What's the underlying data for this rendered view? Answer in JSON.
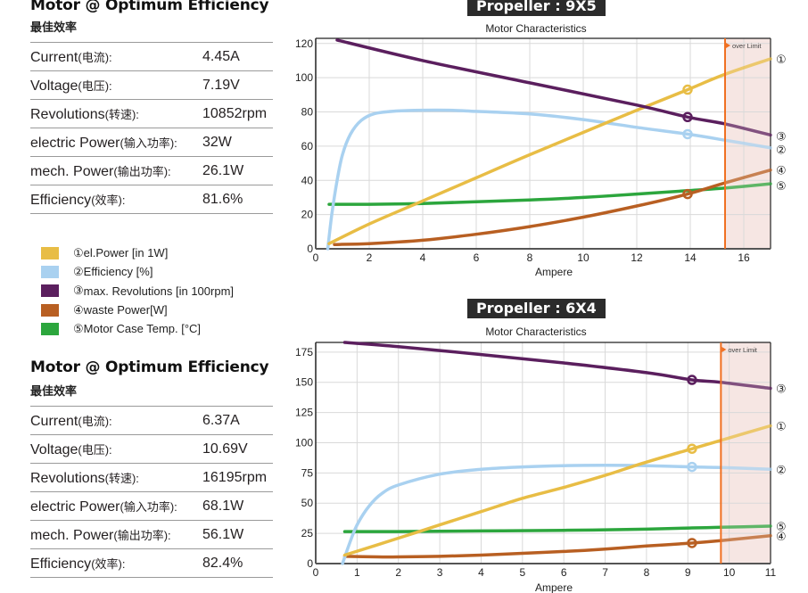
{
  "panels": [
    {
      "title": "Motor @ Optimum Efficiency",
      "subtitle": "最佳效率",
      "rows": [
        {
          "label": "Current",
          "zh": "(电流):",
          "value": "4.45A"
        },
        {
          "label": "Voltage",
          "zh": "(电压):",
          "value": "7.19V"
        },
        {
          "label": "Revolutions",
          "zh": "(转速):",
          "value": "10852rpm"
        },
        {
          "label": "electric Power",
          "zh": "(输入功率):",
          "value": "32W"
        },
        {
          "label": "mech. Power",
          "zh": "(输出功率):",
          "value": "26.1W"
        },
        {
          "label": "Efficiency",
          "zh": "(效率):",
          "value": "81.6%"
        }
      ]
    },
    {
      "title": "Motor @ Optimum Efficiency",
      "subtitle": "最佳效率",
      "rows": [
        {
          "label": "Current",
          "zh": "(电流):",
          "value": "6.37A"
        },
        {
          "label": "Voltage",
          "zh": "(电压):",
          "value": "10.69V"
        },
        {
          "label": "Revolutions",
          "zh": "(转速):",
          "value": "16195rpm"
        },
        {
          "label": "electric Power",
          "zh": "(输入功率):",
          "value": "68.1W"
        },
        {
          "label": "mech. Power",
          "zh": "(输出功率):",
          "value": "56.1W"
        },
        {
          "label": "Efficiency",
          "zh": "(效率):",
          "value": "82.4%"
        }
      ]
    }
  ],
  "legend": [
    {
      "marker": "①",
      "label": " el.Power [in 1W]",
      "color": "#e8bd45"
    },
    {
      "marker": "②",
      "label": "Efficiency [%]",
      "color": "#a9d1f0"
    },
    {
      "marker": "③",
      "label": "max. Revolutions [in 100rpm]",
      "color": "#5b1f5e"
    },
    {
      "marker": "④",
      "label": "waste Power[W]",
      "color": "#b85f22"
    },
    {
      "marker": "⑤",
      "label": "Motor Case Temp. [°C]",
      "color": "#2ca63d"
    }
  ],
  "colors": {
    "el_power": "#e8bd45",
    "efficiency": "#a9d1f0",
    "revolutions": "#5b1f5e",
    "waste_power": "#b85f22",
    "case_temp": "#2ca63d",
    "limit": "#f07022",
    "limit_zone": "#f6e6e3",
    "badge_bg": "#2b2b2b"
  },
  "chart_data": [
    {
      "type": "line",
      "propeller_label": "Propeller : 9X5",
      "title": "Motor Characteristics",
      "xlabel": "Ampere",
      "ylabel": "",
      "xlim": [
        0,
        17
      ],
      "ylim": [
        0,
        123
      ],
      "xticks": [
        0,
        2,
        4,
        6,
        8,
        10,
        12,
        14,
        16
      ],
      "yticks": [
        0,
        20,
        40,
        60,
        80,
        100,
        120
      ],
      "grid": true,
      "over_limit": {
        "x": 15.3,
        "label": "over Limit"
      },
      "operating_point_x": 13.9,
      "series": [
        {
          "name": "el.Power [in 1W]",
          "marker": "①",
          "key": "el_power",
          "points": [
            [
              0.5,
              3
            ],
            [
              2,
              14.5
            ],
            [
              4,
              28
            ],
            [
              6,
              41.5
            ],
            [
              8,
              55
            ],
            [
              10,
              68
            ],
            [
              12,
              81
            ],
            [
              13.9,
              93
            ],
            [
              15.3,
              102
            ],
            [
              17,
              111
            ]
          ]
        },
        {
          "name": "Efficiency [%]",
          "marker": "②",
          "key": "efficiency",
          "points": [
            [
              0.45,
              0
            ],
            [
              0.6,
              20
            ],
            [
              0.8,
              40
            ],
            [
              1,
              55
            ],
            [
              1.3,
              67
            ],
            [
              1.7,
              75
            ],
            [
              2.2,
              79
            ],
            [
              3,
              80.5
            ],
            [
              4,
              81
            ],
            [
              5,
              81
            ],
            [
              6,
              80.3
            ],
            [
              8,
              78.8
            ],
            [
              10,
              75.5
            ],
            [
              12,
              71
            ],
            [
              13.9,
              67
            ],
            [
              15.3,
              63.5
            ],
            [
              17,
              59
            ]
          ]
        },
        {
          "name": "max. Revolutions [in 100rpm]",
          "marker": "③",
          "key": "revolutions",
          "points": [
            [
              0.8,
              122
            ],
            [
              4,
              110
            ],
            [
              8,
              97
            ],
            [
              12,
              84
            ],
            [
              13.9,
              77
            ],
            [
              15.3,
              73
            ],
            [
              17,
              66.5
            ]
          ]
        },
        {
          "name": "waste Power[W]",
          "marker": "④",
          "key": "waste_power",
          "points": [
            [
              0.7,
              2.5
            ],
            [
              2,
              3
            ],
            [
              4,
              5
            ],
            [
              6,
              8.5
            ],
            [
              8,
              13
            ],
            [
              10,
              18.5
            ],
            [
              12,
              25
            ],
            [
              13.9,
              32
            ],
            [
              15.3,
              38.5
            ],
            [
              17,
              46
            ]
          ]
        },
        {
          "name": "Motor Case Temp. [°C]",
          "marker": "⑤",
          "key": "case_temp",
          "points": [
            [
              0.5,
              26
            ],
            [
              2,
              26
            ],
            [
              4,
              26.5
            ],
            [
              6,
              27.5
            ],
            [
              8,
              28.5
            ],
            [
              10,
              30
            ],
            [
              12,
              32
            ],
            [
              13.9,
              34
            ],
            [
              15.3,
              35.5
            ],
            [
              17,
              38
            ]
          ]
        }
      ],
      "end_labels": [
        {
          "marker": "①",
          "y": 111
        },
        {
          "marker": "③",
          "y": 66
        },
        {
          "marker": "②",
          "y": 58
        },
        {
          "marker": "④",
          "y": 46
        },
        {
          "marker": "⑤",
          "y": 37
        }
      ]
    },
    {
      "type": "line",
      "propeller_label": "Propeller : 6X4",
      "title": "Motor Characteristics",
      "xlabel": "Ampere",
      "ylabel": "",
      "xlim": [
        0,
        11
      ],
      "ylim": [
        0,
        183
      ],
      "xticks": [
        0,
        1,
        2,
        3,
        4,
        5,
        6,
        7,
        8,
        9,
        10,
        11
      ],
      "yticks": [
        0,
        25,
        50,
        75,
        100,
        125,
        150,
        175
      ],
      "grid": true,
      "over_limit": {
        "x": 9.8,
        "label": "over Limit"
      },
      "operating_point_x": 9.1,
      "series": [
        {
          "name": "el.Power [in 1W]",
          "marker": "①",
          "key": "el_power",
          "points": [
            [
              0.7,
              7
            ],
            [
              2,
              21
            ],
            [
              3,
              32
            ],
            [
              4,
              43
            ],
            [
              5,
              54
            ],
            [
              6,
              63
            ],
            [
              7,
              73
            ],
            [
              8,
              84
            ],
            [
              9.1,
              95
            ],
            [
              9.8,
              102
            ],
            [
              11,
              114
            ]
          ]
        },
        {
          "name": "Efficiency [%]",
          "marker": "②",
          "key": "efficiency",
          "points": [
            [
              0.65,
              0
            ],
            [
              0.8,
              15
            ],
            [
              1,
              32
            ],
            [
              1.3,
              48
            ],
            [
              1.6,
              58
            ],
            [
              2,
              65
            ],
            [
              3,
              74
            ],
            [
              4,
              78
            ],
            [
              5,
              80
            ],
            [
              6,
              81
            ],
            [
              7,
              81.3
            ],
            [
              8,
              81
            ],
            [
              9.1,
              80
            ],
            [
              9.8,
              79.5
            ],
            [
              11,
              78
            ]
          ]
        },
        {
          "name": "max. Revolutions [in 100rpm]",
          "marker": "③",
          "key": "revolutions",
          "points": [
            [
              0.7,
              183
            ],
            [
              2,
              179.5
            ],
            [
              4,
              173
            ],
            [
              6,
              166
            ],
            [
              8,
              158
            ],
            [
              9.1,
              152
            ],
            [
              9.8,
              150
            ],
            [
              11,
              145
            ]
          ]
        },
        {
          "name": "waste Power[W]",
          "marker": "④",
          "key": "waste_power",
          "points": [
            [
              0.7,
              6
            ],
            [
              1.5,
              5.5
            ],
            [
              2,
              5.5
            ],
            [
              3,
              6
            ],
            [
              4,
              7
            ],
            [
              5,
              8.5
            ],
            [
              6,
              10
            ],
            [
              7,
              12
            ],
            [
              8,
              14.5
            ],
            [
              9.1,
              17
            ],
            [
              9.8,
              19
            ],
            [
              11,
              23
            ]
          ]
        },
        {
          "name": "Motor Case Temp. [°C]",
          "marker": "⑤",
          "key": "case_temp",
          "points": [
            [
              0.7,
              26.5
            ],
            [
              2,
              26.5
            ],
            [
              4,
              27
            ],
            [
              6,
              27.5
            ],
            [
              8,
              28.5
            ],
            [
              9.1,
              29.5
            ],
            [
              9.8,
              30
            ],
            [
              11,
              31
            ]
          ]
        }
      ],
      "end_labels": [
        {
          "marker": "③",
          "y": 145
        },
        {
          "marker": "①",
          "y": 114
        },
        {
          "marker": "②",
          "y": 78
        },
        {
          "marker": "⑤",
          "y": 31
        },
        {
          "marker": "④",
          "y": 23
        }
      ]
    }
  ]
}
